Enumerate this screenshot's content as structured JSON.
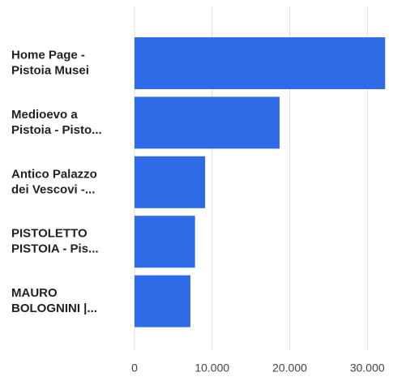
{
  "chart_data": {
    "type": "bar",
    "orientation": "horizontal",
    "categories": [
      [
        "Home Page -",
        "Pistoia Musei"
      ],
      [
        "Medioevo a",
        "Pistoia - Pisto..."
      ],
      [
        "Antico Palazzo",
        "dei Vescovi -..."
      ],
      [
        "PISTOLETTO",
        "PISTOIA - Pis..."
      ],
      [
        "MAURO",
        "BOLOGNINI |..."
      ]
    ],
    "values": [
      32300,
      18700,
      9100,
      7800,
      7200
    ],
    "color": "#2f6be7",
    "xlim": [
      0,
      33000
    ],
    "xticks": [
      0,
      {
        "value": 10000,
        "label": "10.000"
      },
      {
        "value": 20000,
        "label": "20.000"
      },
      {
        "value": 30000,
        "label": "30.000"
      }
    ],
    "grid": true
  }
}
